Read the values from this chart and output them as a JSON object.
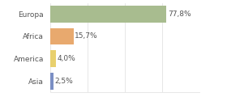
{
  "categories": [
    "Europa",
    "Africa",
    "America",
    "Asia"
  ],
  "values": [
    77.8,
    15.7,
    4.0,
    2.5
  ],
  "labels": [
    "77,8%",
    "15,7%",
    "4,0%",
    "2,5%"
  ],
  "bar_colors": [
    "#a8bc8f",
    "#e8a96e",
    "#e8d06e",
    "#7b8fc4"
  ],
  "background_color": "#ffffff",
  "xlim": [
    0,
    100
  ],
  "bar_height": 0.75,
  "label_fontsize": 6.5,
  "tick_fontsize": 6.5,
  "grid_color": "#dddddd",
  "grid_positions": [
    0,
    25,
    50,
    75,
    100
  ]
}
